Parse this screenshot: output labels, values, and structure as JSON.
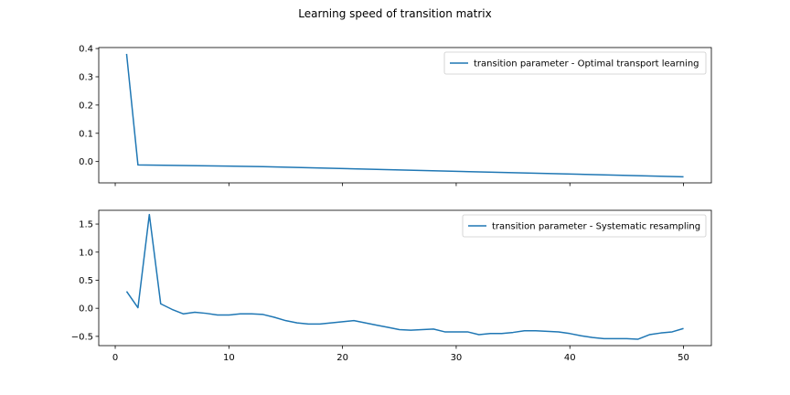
{
  "figure": {
    "title": "Learning speed of transition matrix"
  },
  "colors": {
    "series": "#1f77b4",
    "axes": "#000000",
    "background": "#ffffff"
  },
  "chart_data": [
    {
      "type": "line",
      "title": "",
      "xlabel": "",
      "ylabel": "",
      "xlim": [
        -1.45,
        52.45
      ],
      "ylim": [
        -0.0755,
        0.4035
      ],
      "xticks": [
        0,
        10,
        20,
        30,
        40,
        50
      ],
      "xtick_labels_visible": false,
      "yticks": [
        0.0,
        0.1,
        0.2,
        0.3,
        0.4
      ],
      "ytick_labels": [
        "0.0",
        "0.1",
        "0.2",
        "0.3",
        "0.4"
      ],
      "grid": false,
      "legend_position": "top-right",
      "series": [
        {
          "name": "transition parameter - Optimal transport learning",
          "x": [
            1,
            2,
            13,
            50
          ],
          "y": [
            0.381,
            -0.012,
            -0.018,
            -0.054
          ]
        }
      ]
    },
    {
      "type": "line",
      "title": "",
      "xlabel": "",
      "ylabel": "",
      "xlim": [
        -1.45,
        52.45
      ],
      "ylim": [
        -0.665,
        1.745
      ],
      "xticks": [
        0,
        10,
        20,
        30,
        40,
        50
      ],
      "xtick_labels": [
        "0",
        "10",
        "20",
        "30",
        "40",
        "50"
      ],
      "yticks": [
        -0.5,
        0.0,
        0.5,
        1.0,
        1.5
      ],
      "ytick_labels": [
        "−0.5",
        "0.0",
        "0.5",
        "1.0",
        "1.5"
      ],
      "grid": false,
      "legend_position": "top-right",
      "series": [
        {
          "name": "transition parameter - Systematic resampling",
          "x": [
            1,
            2,
            3,
            4,
            5,
            6,
            7,
            8,
            9,
            10,
            11,
            12,
            13,
            14,
            15,
            16,
            17,
            18,
            19,
            20,
            21,
            22,
            23,
            24,
            25,
            26,
            27,
            28,
            29,
            30,
            31,
            32,
            33,
            34,
            35,
            36,
            37,
            38,
            39,
            40,
            41,
            42,
            43,
            44,
            45,
            46,
            47,
            48,
            49,
            50
          ],
          "y": [
            0.3,
            0.01,
            1.67,
            0.08,
            -0.02,
            -0.1,
            -0.07,
            -0.09,
            -0.12,
            -0.12,
            -0.1,
            -0.1,
            -0.11,
            -0.16,
            -0.22,
            -0.26,
            -0.28,
            -0.28,
            -0.26,
            -0.24,
            -0.22,
            -0.26,
            -0.3,
            -0.34,
            -0.38,
            -0.39,
            -0.38,
            -0.37,
            -0.42,
            -0.42,
            -0.42,
            -0.47,
            -0.45,
            -0.45,
            -0.43,
            -0.4,
            -0.4,
            -0.41,
            -0.42,
            -0.45,
            -0.49,
            -0.52,
            -0.54,
            -0.54,
            -0.54,
            -0.55,
            -0.47,
            -0.44,
            -0.42,
            -0.36
          ]
        }
      ]
    }
  ]
}
